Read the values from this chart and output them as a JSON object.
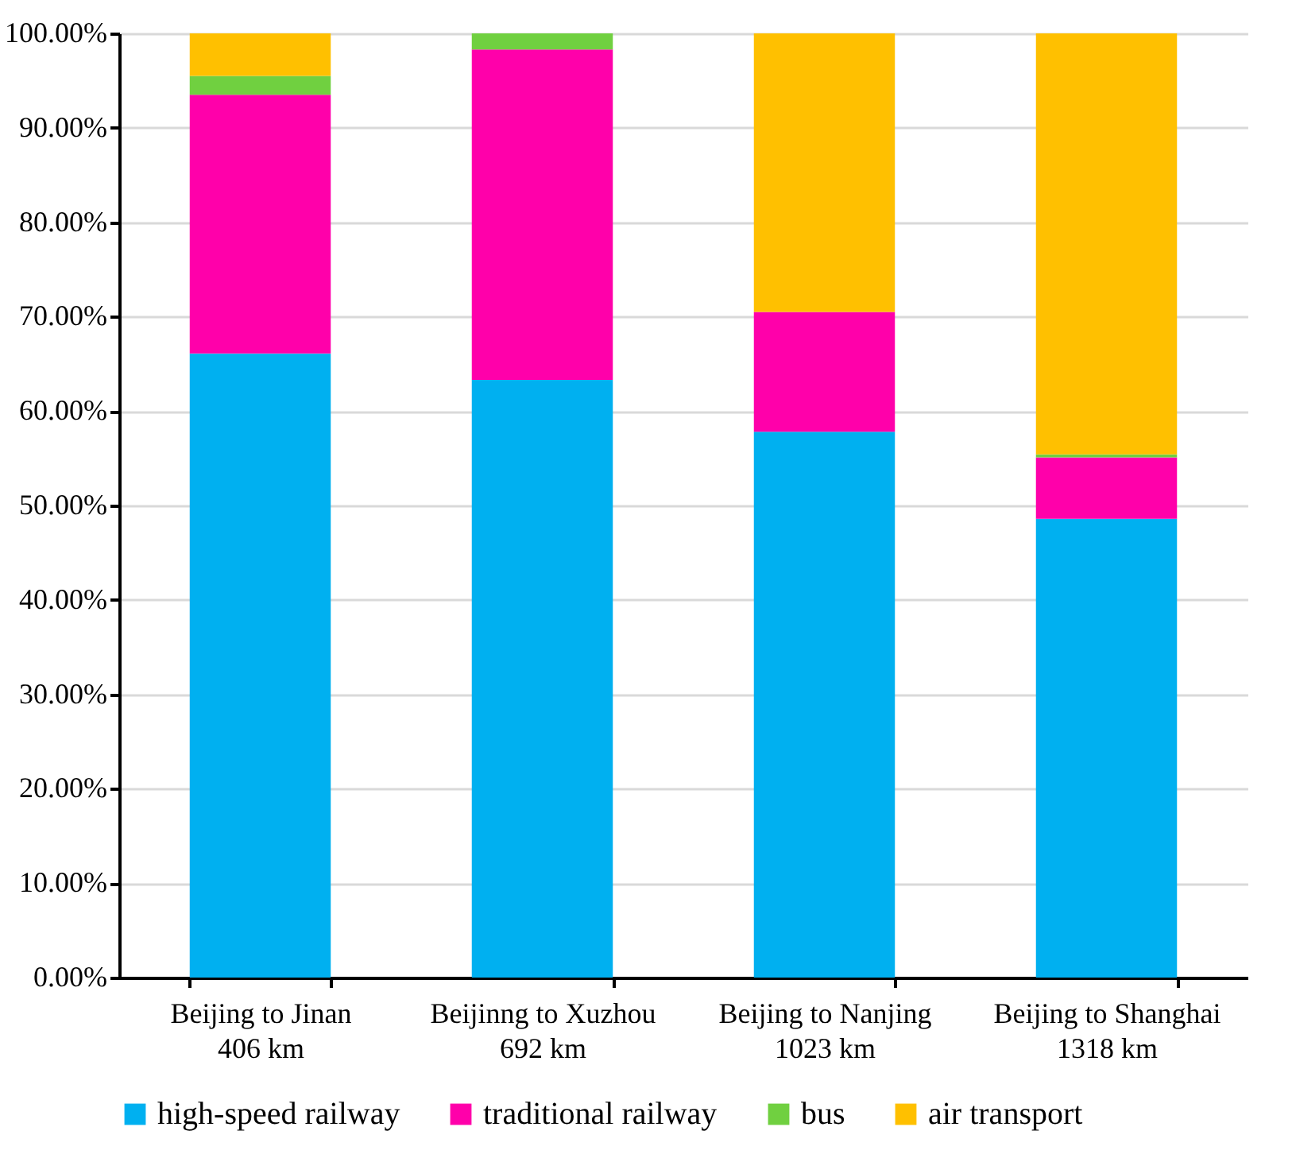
{
  "chart_data": {
    "type": "bar",
    "stacked": true,
    "categories": [
      "Beijing to Jinan\n406 km",
      "Beijinng to Xuzhou\n692 km",
      "Beijing to Nanjing\n1023 km",
      "Beijing to Shanghai\n1318 km"
    ],
    "series": [
      {
        "name": "high-speed railway",
        "color": "#00b0f0",
        "values": [
          66.1,
          63.3,
          57.8,
          48.6
        ]
      },
      {
        "name": "traditional railway",
        "color": "#ff00aa",
        "values": [
          27.4,
          35.0,
          12.7,
          6.5
        ]
      },
      {
        "name": "bus",
        "color": "#70d040",
        "values": [
          2.0,
          1.7,
          0,
          0.3
        ]
      },
      {
        "name": "air transport",
        "color": "#ffc000",
        "values": [
          4.5,
          0,
          29.5,
          44.6
        ]
      }
    ],
    "ylim": [
      0,
      100
    ],
    "yticks": [
      {
        "value": 0,
        "label": "0.00%"
      },
      {
        "value": 10,
        "label": "10.00%"
      },
      {
        "value": 20,
        "label": "20.00%"
      },
      {
        "value": 30,
        "label": "30.00%"
      },
      {
        "value": 40,
        "label": "40.00%"
      },
      {
        "value": 50,
        "label": "50.00%"
      },
      {
        "value": 60,
        "label": "60.00%"
      },
      {
        "value": 70,
        "label": "70.00%"
      },
      {
        "value": 80,
        "label": "80.00%"
      },
      {
        "value": 90,
        "label": "90.00%"
      },
      {
        "value": 100,
        "label": "100.00%"
      }
    ],
    "grid": "y",
    "legend": "bottom"
  }
}
